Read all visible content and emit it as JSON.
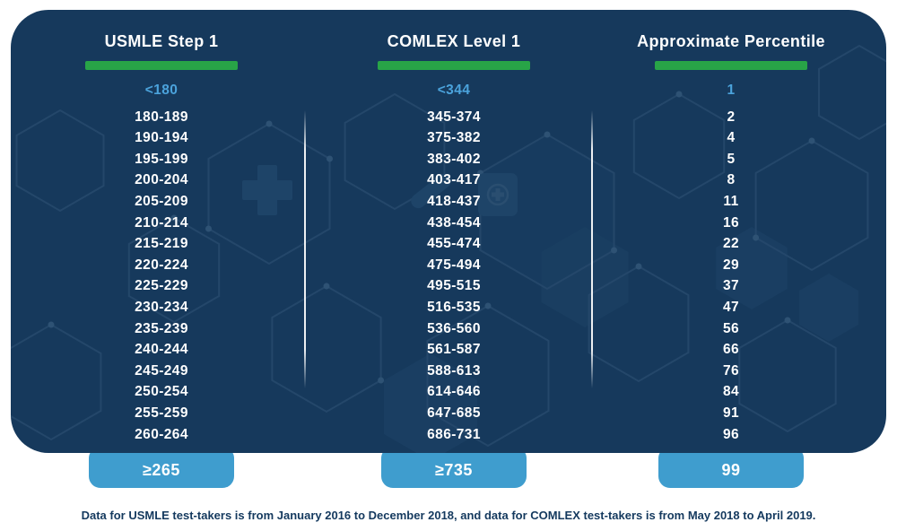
{
  "chart_data": {
    "type": "table",
    "columns": [
      "USMLE Step 1",
      "COMLEX Level 1",
      "Approximate Percentile"
    ],
    "rows": [
      [
        "<180",
        "<344",
        "1"
      ],
      [
        "180-189",
        "345-374",
        "2"
      ],
      [
        "190-194",
        "375-382",
        "4"
      ],
      [
        "195-199",
        "383-402",
        "5"
      ],
      [
        "200-204",
        "403-417",
        "8"
      ],
      [
        "205-209",
        "418-437",
        "11"
      ],
      [
        "210-214",
        "438-454",
        "16"
      ],
      [
        "215-219",
        "455-474",
        "22"
      ],
      [
        "220-224",
        "475-494",
        "29"
      ],
      [
        "225-229",
        "495-515",
        "37"
      ],
      [
        "230-234",
        "516-535",
        "47"
      ],
      [
        "235-239",
        "536-560",
        "56"
      ],
      [
        "240-244",
        "561-587",
        "66"
      ],
      [
        "245-249",
        "588-613",
        "76"
      ],
      [
        "250-254",
        "614-646",
        "84"
      ],
      [
        "255-259",
        "647-685",
        "91"
      ],
      [
        "260-264",
        "686-731",
        "96"
      ],
      [
        "≥265",
        "≥735",
        "99"
      ]
    ],
    "notes": "First row shown in light blue; last row shown in blue highlight boxes below the card"
  },
  "table": {
    "columns": [
      {
        "header": "USMLE Step 1",
        "values": [
          "<180",
          "180-189",
          "190-194",
          "195-199",
          "200-204",
          "205-209",
          "210-214",
          "215-219",
          "220-224",
          "225-229",
          "230-234",
          "235-239",
          "240-244",
          "245-249",
          "250-254",
          "255-259",
          "260-264"
        ],
        "highlight_value": "≥265"
      },
      {
        "header": "COMLEX Level 1",
        "values": [
          "<344",
          "345-374",
          "375-382",
          "383-402",
          "403-417",
          "418-437",
          "438-454",
          "455-474",
          "475-494",
          "495-515",
          "516-535",
          "536-560",
          "561-587",
          "588-613",
          "614-646",
          "647-685",
          "686-731"
        ],
        "highlight_value": "≥735"
      },
      {
        "header": "Approximate Percentile",
        "values": [
          "1",
          "2",
          "4",
          "5",
          "8",
          "11",
          "16",
          "22",
          "29",
          "37",
          "47",
          "56",
          "66",
          "76",
          "84",
          "91",
          "96"
        ],
        "highlight_value": "99"
      }
    ]
  },
  "footer": {
    "note": "Data for USMLE test-takers is from January 2016 to December 2018, and data for COMLEX test-takers is from May 2018 to April 2019."
  },
  "colors": {
    "card_background": "#16395c",
    "header_underline_green": "#28a447",
    "first_row_blue": "#4ba3dc",
    "highlight_pill_blue": "#3f9dce",
    "text_white": "#ffffff",
    "footnote_navy": "#14395e",
    "pattern_line": "#26496c",
    "pattern_fill": "#1b4063"
  }
}
